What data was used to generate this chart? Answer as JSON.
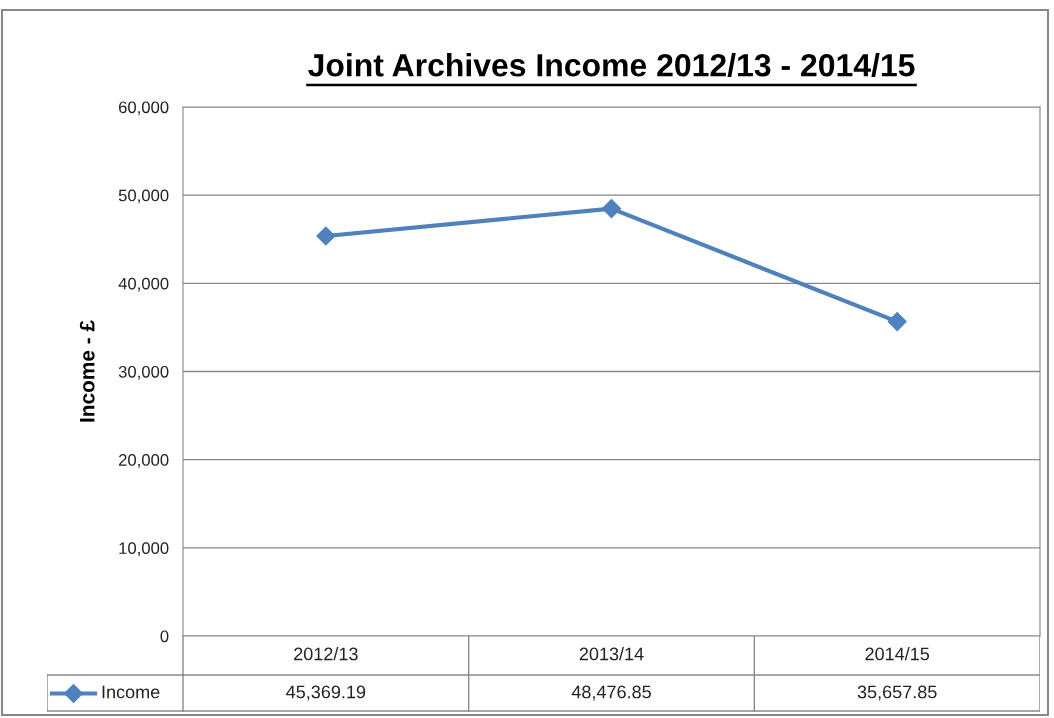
{
  "chart_data": {
    "type": "line",
    "title": "Joint Archives Income 2012/13 - 2014/15",
    "ylabel": "Income - £",
    "categories": [
      "2012/13",
      "2013/14",
      "2014/15"
    ],
    "series": [
      {
        "name": "Income",
        "color": "#4f81bd",
        "values": [
          45369.19,
          48476.85,
          35657.85
        ],
        "value_labels": [
          "45,369.19",
          "48,476.85",
          "35,657.85"
        ]
      }
    ],
    "ylim": [
      0,
      60000
    ],
    "yticks": [
      {
        "value": 0,
        "label": "0"
      },
      {
        "value": 10000,
        "label": "10,000"
      },
      {
        "value": 20000,
        "label": "20,000"
      },
      {
        "value": 30000,
        "label": "30,000"
      },
      {
        "value": 40000,
        "label": "40,000"
      },
      {
        "value": 50000,
        "label": "50,000"
      },
      {
        "value": 60000,
        "label": "60,000"
      }
    ],
    "grid": "y",
    "legend": "bottom left",
    "marker": "diamond",
    "line_style": "solid"
  }
}
